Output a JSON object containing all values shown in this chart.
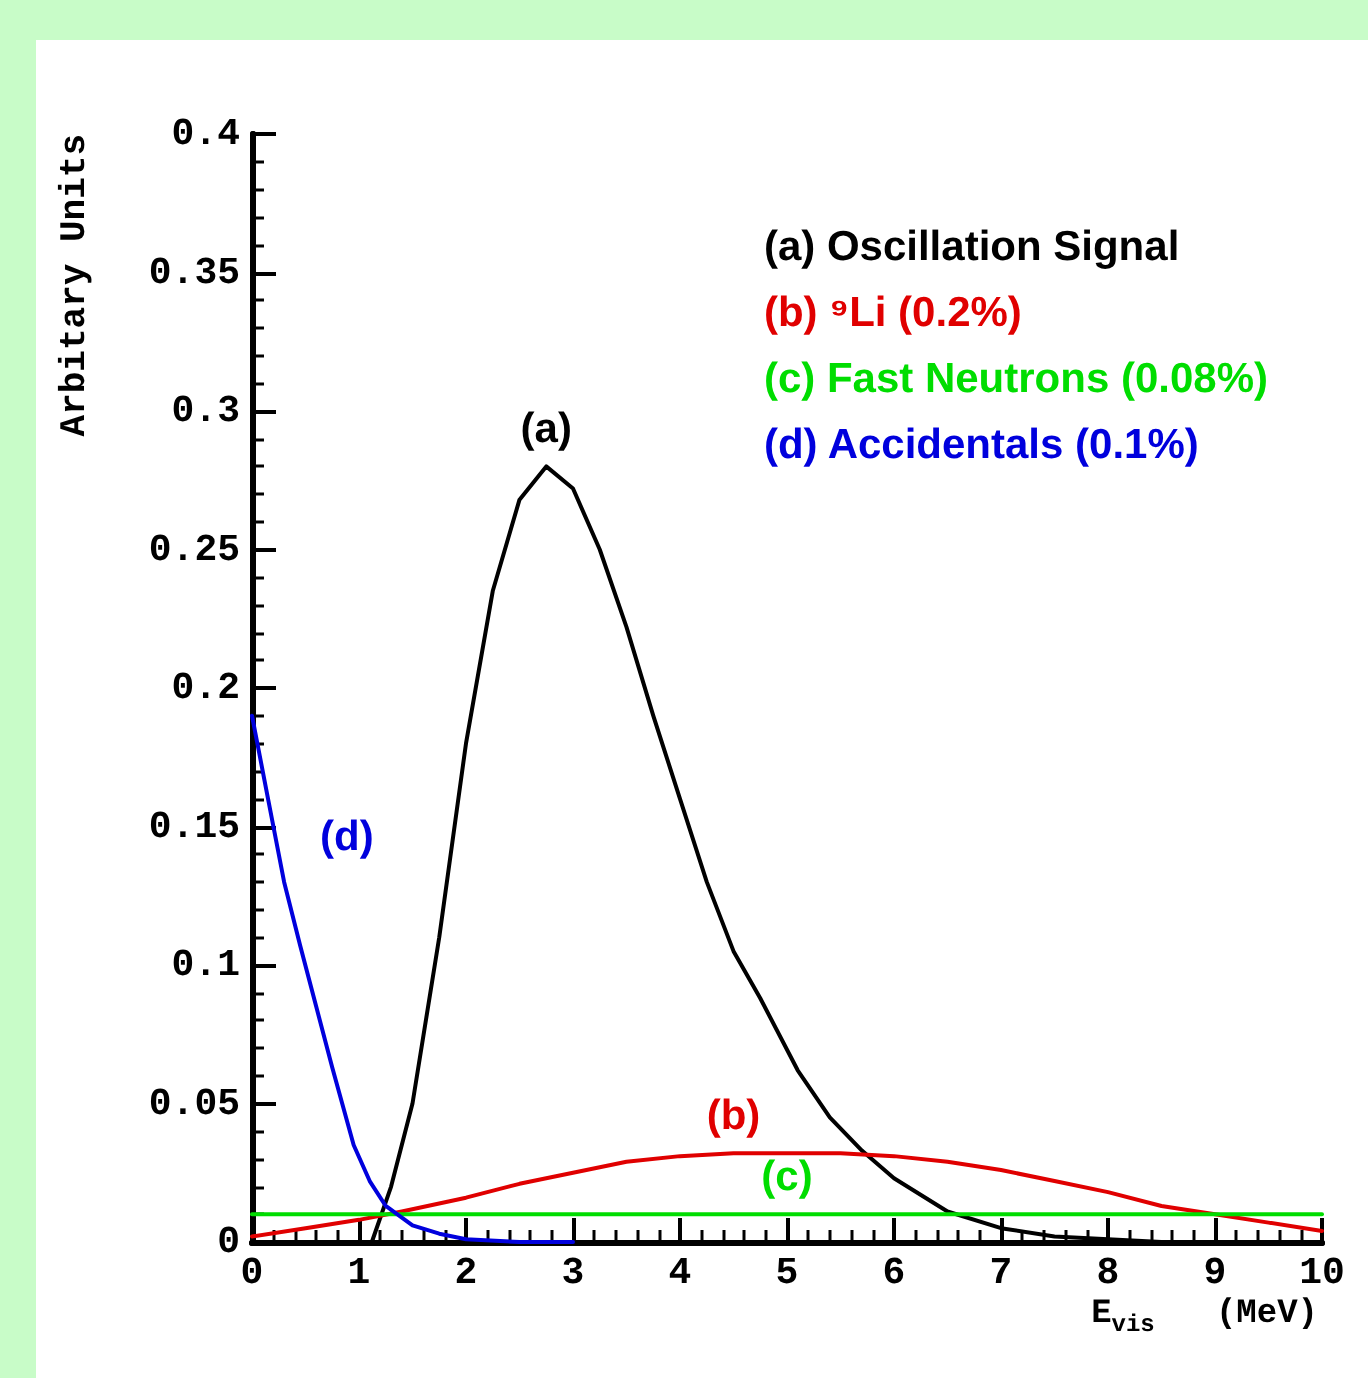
{
  "chart_data": {
    "type": "line",
    "xlabel": "E$_{vis}$   (MeV)",
    "ylabel": "Arbitary Units",
    "xlim": [
      0,
      10
    ],
    "xticks": [
      0,
      1,
      2,
      3,
      4,
      5,
      6,
      7,
      8,
      9,
      10
    ],
    "ylim": [
      0,
      0.4
    ],
    "yticks": [
      0,
      0.05,
      0.1,
      0.15,
      0.2,
      0.25,
      0.3,
      0.35,
      0.4
    ],
    "grid": false,
    "legend": "top right",
    "marker": "none",
    "line_style": "solid",
    "series": [
      {
        "name": "(a) Oscillation Signal",
        "color": "#000000",
        "x": [
          1.12,
          1.3,
          1.5,
          1.75,
          2.0,
          2.25,
          2.5,
          2.75,
          3.0,
          3.25,
          3.5,
          3.75,
          4.0,
          4.25,
          4.5,
          4.75,
          5.1,
          5.4,
          5.7,
          6.0,
          6.5,
          7.0,
          7.5,
          8.0,
          8.5,
          9.0,
          10.0
        ],
        "values": [
          0.0,
          0.02,
          0.05,
          0.11,
          0.18,
          0.235,
          0.268,
          0.28,
          0.272,
          0.25,
          0.222,
          0.19,
          0.16,
          0.13,
          0.105,
          0.088,
          0.062,
          0.045,
          0.033,
          0.023,
          0.011,
          0.005,
          0.002,
          0.001,
          0.0,
          0.0,
          0.0
        ]
      },
      {
        "name": "(b) ⁹Li (0.2%)",
        "color": "#e00000",
        "x": [
          0,
          0.5,
          1.0,
          1.4,
          2.0,
          2.5,
          3.0,
          3.5,
          4.0,
          4.5,
          5.0,
          5.5,
          6.0,
          6.5,
          7.0,
          7.5,
          8.0,
          8.5,
          9.0,
          9.5,
          10.0
        ],
        "values": [
          0.002,
          0.005,
          0.008,
          0.011,
          0.016,
          0.021,
          0.025,
          0.029,
          0.031,
          0.032,
          0.032,
          0.032,
          0.031,
          0.029,
          0.026,
          0.022,
          0.018,
          0.013,
          0.01,
          0.007,
          0.004
        ]
      },
      {
        "name": "(c) Fast Neutrons (0.08%)",
        "color": "#00dd00",
        "x": [
          0,
          10
        ],
        "values": [
          0.01,
          0.01
        ]
      },
      {
        "name": "(d) Accidentals (0.1%)",
        "color": "#0000dd",
        "x": [
          0,
          0.15,
          0.3,
          0.45,
          0.6,
          0.75,
          0.95,
          1.1,
          1.25,
          1.5,
          1.75,
          2.0,
          2.5,
          3.0
        ],
        "values": [
          0.19,
          0.16,
          0.13,
          0.107,
          0.085,
          0.063,
          0.035,
          0.022,
          0.013,
          0.006,
          0.003,
          0.001,
          0.0,
          0.0
        ]
      }
    ],
    "annotations": [
      {
        "text": "(a)",
        "x": 2.75,
        "y": 0.28
      },
      {
        "text": "(b)",
        "x": 4.5,
        "y": 0.032
      },
      {
        "text": "(c)",
        "x": 5.0,
        "y": 0.01
      },
      {
        "text": "(d)",
        "x": 0.3,
        "y": 0.13
      }
    ]
  }
}
